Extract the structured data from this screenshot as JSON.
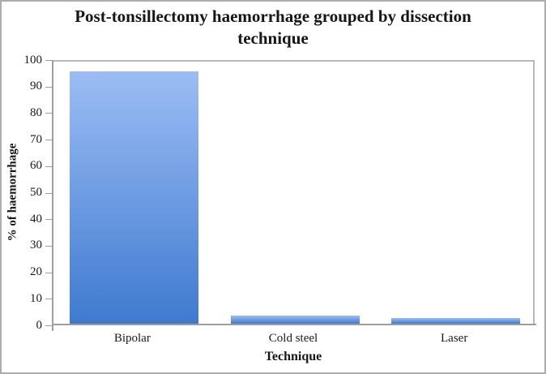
{
  "chart_data": {
    "type": "bar",
    "title": "Post-tonsillectomy haemorrhage grouped by dissection technique",
    "categories": [
      "Bipolar",
      "Cold steel",
      "Laser"
    ],
    "values": [
      95,
      3,
      2
    ],
    "xlabel": "Technique",
    "ylabel": "% of haemorrhage",
    "ylim": [
      0,
      100
    ],
    "yticks": [
      0,
      10,
      20,
      30,
      40,
      50,
      60,
      70,
      80,
      90,
      100
    ],
    "grid": false,
    "legend_position": "none",
    "colors": {
      "bar_gradient_top": "#9cbdf4",
      "bar_gradient_bottom": "#3f7ad0",
      "axis_line": "#9e9e9e",
      "plot_border": "#b9b9b9",
      "figure_border": "#adadad",
      "text": "#1a1a1a"
    }
  }
}
